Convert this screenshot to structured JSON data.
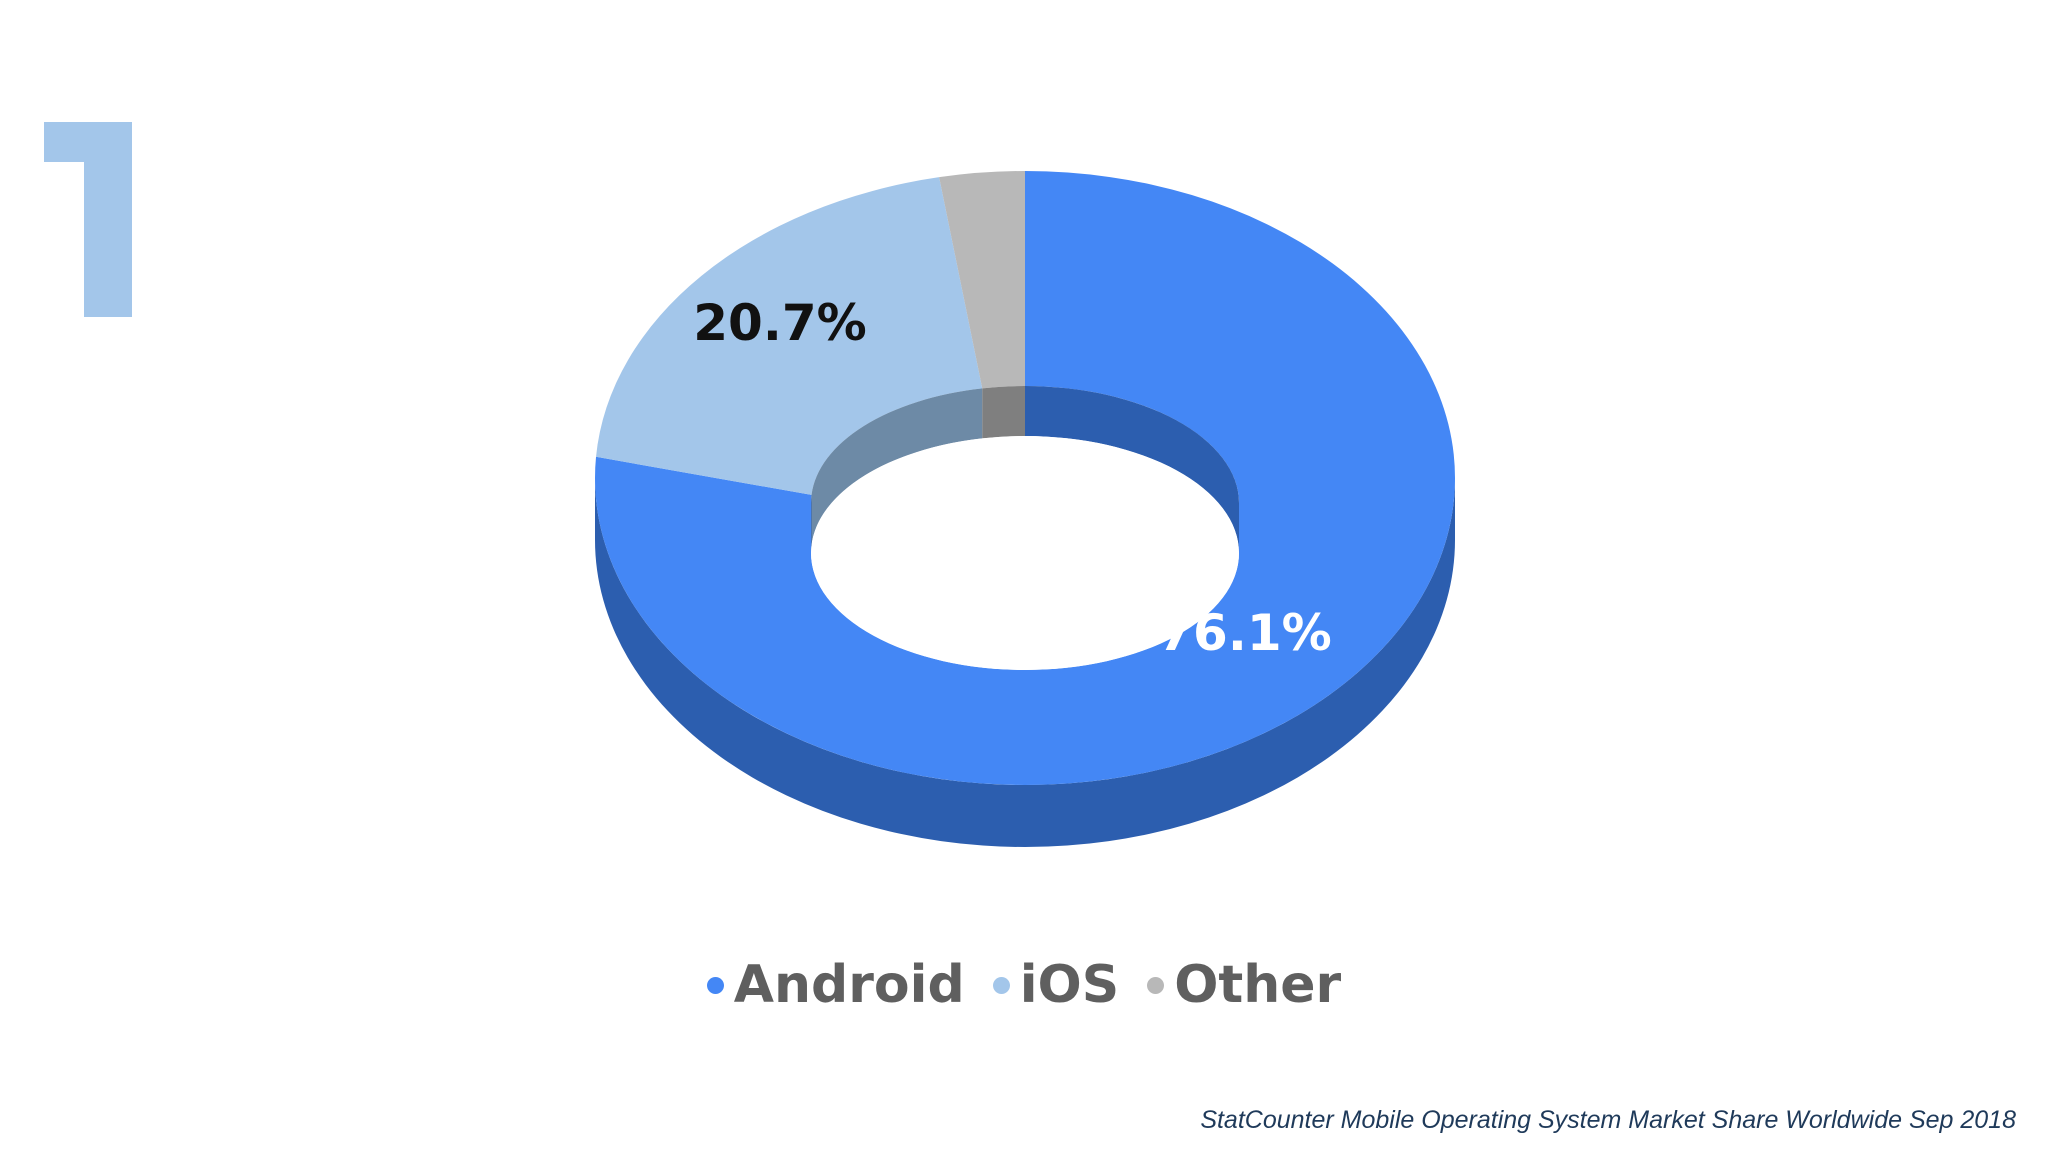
{
  "slide": {
    "number": "1",
    "number_color": "#a3c6ea"
  },
  "chart_data": {
    "type": "pie",
    "variant": "3d-donut",
    "title": "",
    "categories": [
      "Android",
      "iOS",
      "Other"
    ],
    "values": [
      76.1,
      20.7,
      3.2
    ],
    "data_labels": [
      "76.1%",
      "20.7%",
      ""
    ],
    "colors": {
      "Android": "#4487f5",
      "iOS": "#a3c6ea",
      "Other": "#b8b8b8"
    },
    "side_colors": {
      "Android": "#2c5eaf",
      "iOS": "#6d8aa6",
      "Other": "#7f7f7f"
    },
    "label_colors": [
      "#ffffff",
      "#111111",
      "#111111"
    ],
    "legend": {
      "placement": "bottom-center",
      "items": [
        {
          "label": "Android",
          "color": "#4487f5"
        },
        {
          "label": "iOS",
          "color": "#a3c6ea"
        },
        {
          "label": "Other",
          "color": "#b8b8b8"
        }
      ]
    }
  },
  "source_note": "StatCounter Mobile Operating System Market Share Worldwide Sep 2018"
}
